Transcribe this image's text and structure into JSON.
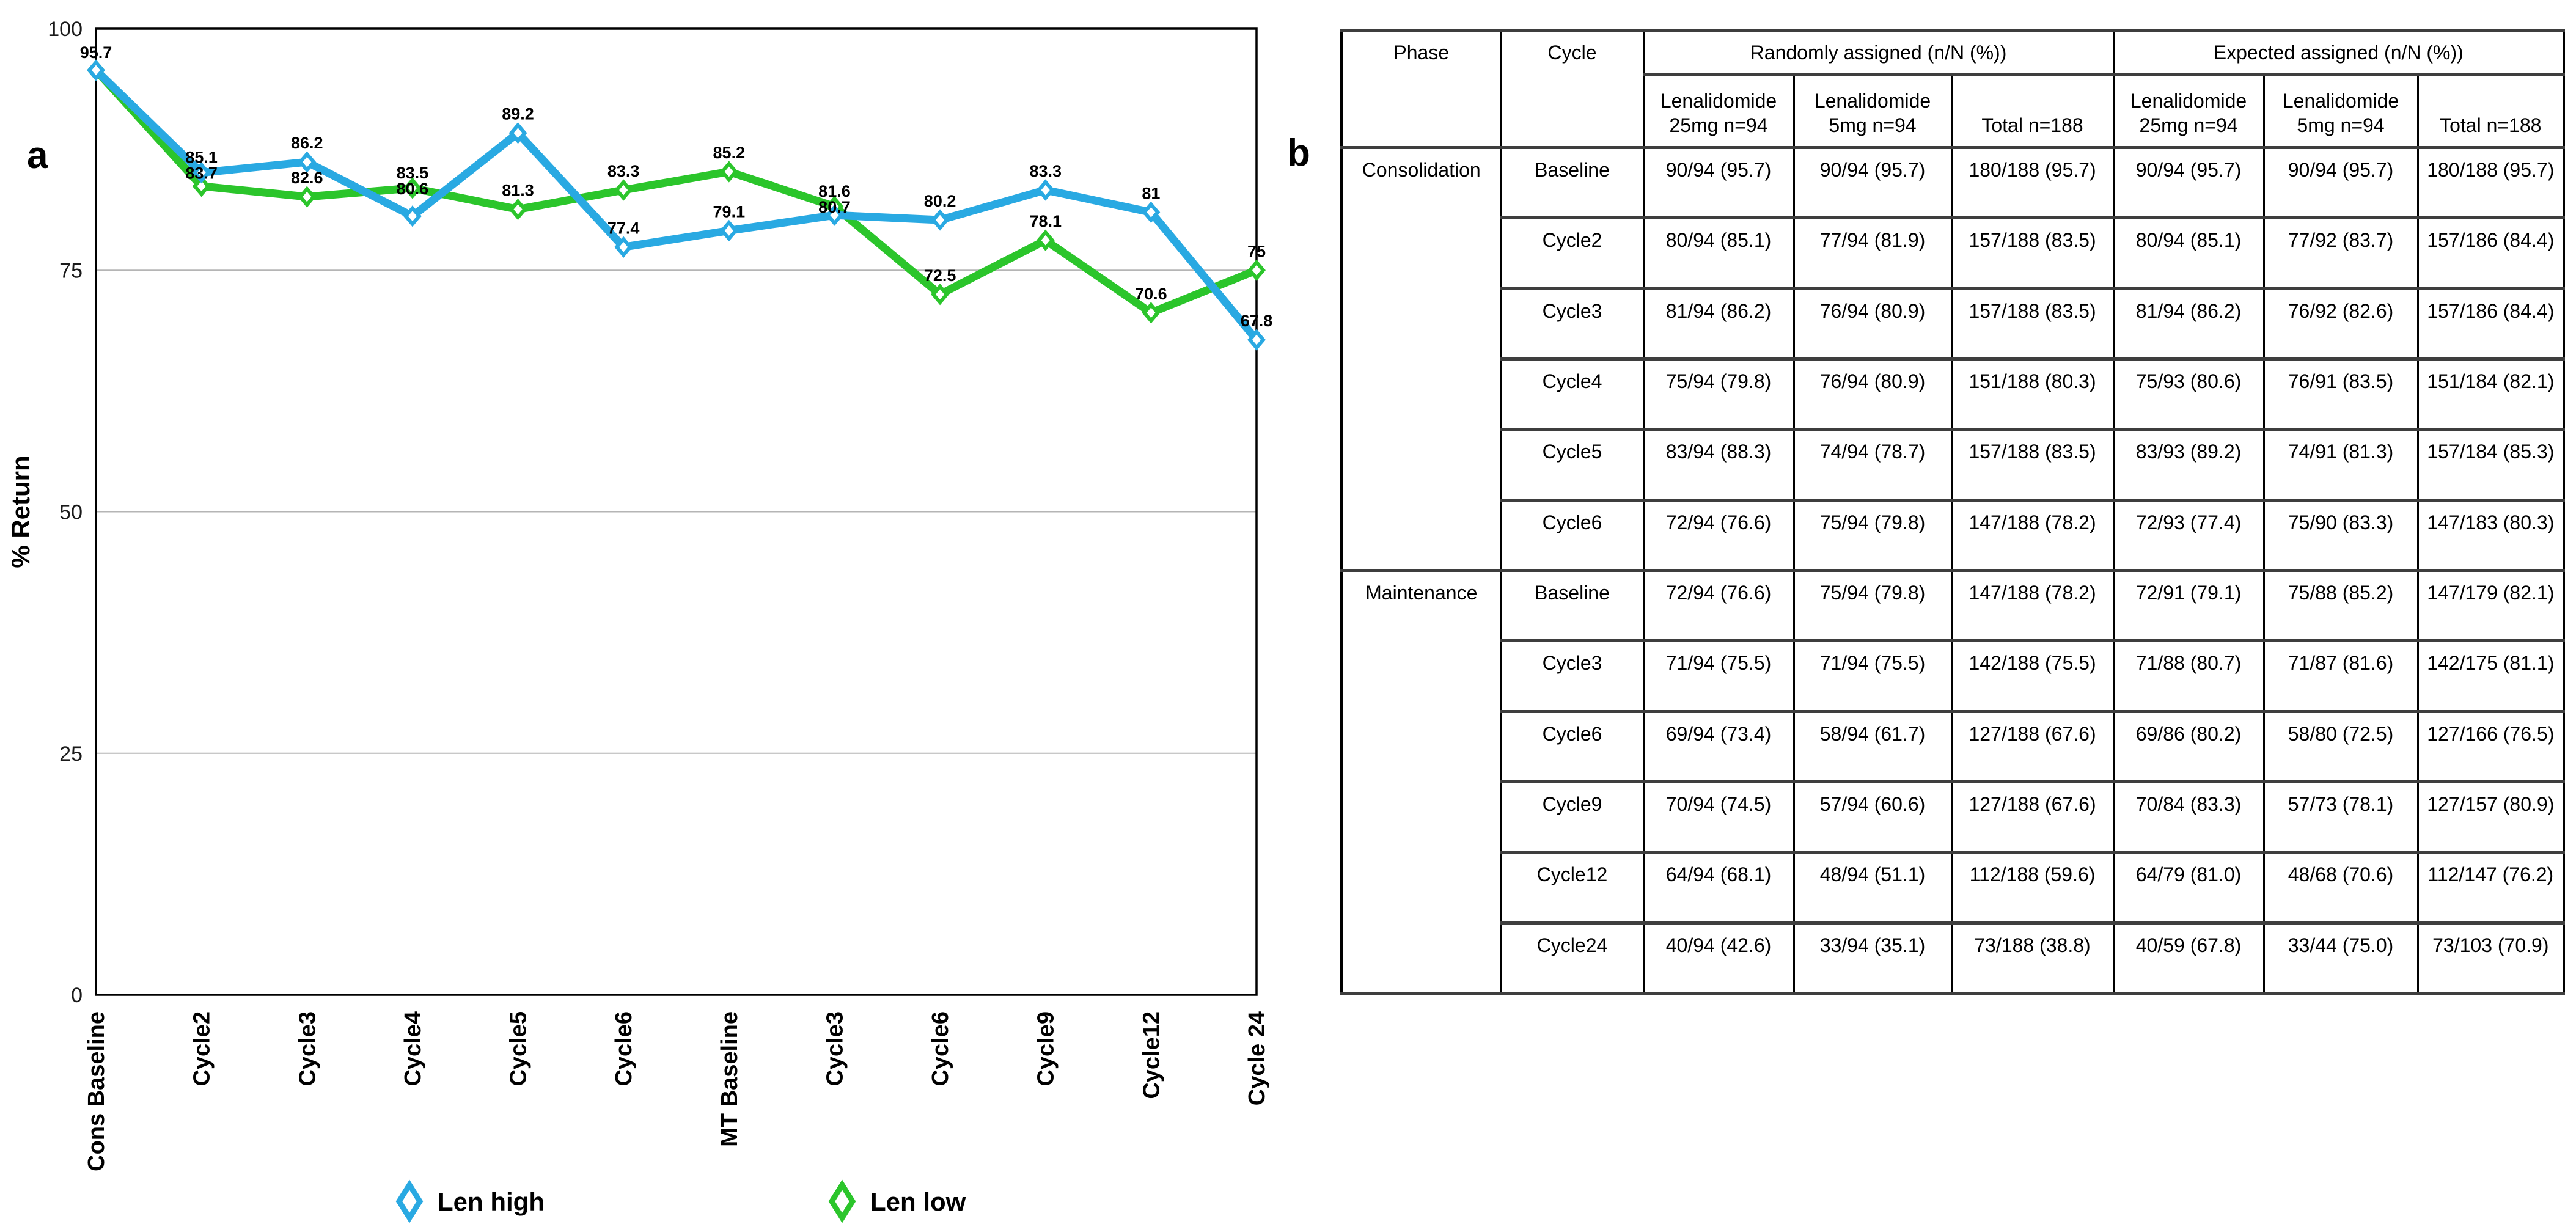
{
  "figure": {
    "panel_a": "a",
    "panel_b": "b"
  },
  "chart_data": {
    "type": "line",
    "title": "",
    "xlabel": "",
    "ylabel": "% Return",
    "ylim": [
      0,
      100
    ],
    "yticks": [
      0,
      25,
      50,
      75,
      100
    ],
    "gridlines": [
      25,
      50,
      75
    ],
    "grid": true,
    "legend_position": "bottom",
    "categories": [
      "Cons Baseline",
      "Cycle2",
      "Cycle3",
      "Cycle4",
      "Cycle5",
      "Cycle6",
      "MT Baseline",
      "Cycle3",
      "Cycle6",
      "Cycle9",
      "Cycle12",
      "Cycle 24"
    ],
    "series": [
      {
        "name": "Len high",
        "color": "#29A9E2",
        "values": [
          95.7,
          85.1,
          86.2,
          80.6,
          89.2,
          77.4,
          79.1,
          80.7,
          80.2,
          83.3,
          81,
          67.8
        ],
        "point_labels": [
          "95.7",
          "85.1",
          "86.2",
          "80.6",
          "89.2",
          "77.4",
          "79.1",
          "80.7",
          "80.2",
          "83.3",
          "81",
          "67.8"
        ]
      },
      {
        "name": "Len low",
        "color": "#2BC52B",
        "values": [
          95.7,
          83.7,
          82.6,
          83.5,
          81.3,
          83.3,
          85.2,
          81.6,
          72.5,
          78.1,
          70.6,
          75
        ],
        "point_labels": [
          "95.7",
          "83.7",
          "82.6",
          "83.5",
          "81.3",
          "83.3",
          "85.2",
          "81.6",
          "72.5",
          "78.1",
          "70.6",
          "75"
        ]
      }
    ]
  },
  "table": {
    "headers": {
      "phase": "Phase",
      "cycle": "Cycle",
      "randomly": "Randomly assigned (n/N (%))",
      "expected": "Expected assigned (n/N (%))"
    },
    "subheaders": [
      "Lenalidomide\n25mg n=94",
      "Lenalidomide\n5mg n=94",
      "Total n=188",
      "Lenalidomide\n25mg n=94",
      "Lenalidomide\n5mg n=94",
      "Total n=188"
    ],
    "rows": [
      {
        "phase": "Consolidation",
        "cycle": "Baseline",
        "values": [
          "90/94 (95.7)",
          "90/94 (95.7)",
          "180/188 (95.7)",
          "90/94 (95.7)",
          "90/94 (95.7)",
          "180/188 (95.7)"
        ]
      },
      {
        "phase": "",
        "cycle": "Cycle2",
        "values": [
          "80/94 (85.1)",
          "77/94 (81.9)",
          "157/188 (83.5)",
          "80/94 (85.1)",
          "77/92 (83.7)",
          "157/186 (84.4)"
        ]
      },
      {
        "phase": "",
        "cycle": "Cycle3",
        "values": [
          "81/94 (86.2)",
          "76/94 (80.9)",
          "157/188 (83.5)",
          "81/94 (86.2)",
          "76/92 (82.6)",
          "157/186 (84.4)"
        ]
      },
      {
        "phase": "",
        "cycle": "Cycle4",
        "values": [
          "75/94 (79.8)",
          "76/94 (80.9)",
          "151/188 (80.3)",
          "75/93 (80.6)",
          "76/91 (83.5)",
          "151/184 (82.1)"
        ]
      },
      {
        "phase": "",
        "cycle": "Cycle5",
        "values": [
          "83/94 (88.3)",
          "74/94 (78.7)",
          "157/188 (83.5)",
          "83/93 (89.2)",
          "74/91 (81.3)",
          "157/184 (85.3)"
        ]
      },
      {
        "phase": "",
        "cycle": "Cycle6",
        "values": [
          "72/94 (76.6)",
          "75/94 (79.8)",
          "147/188 (78.2)",
          "72/93 (77.4)",
          "75/90 (83.3)",
          "147/183 (80.3)"
        ]
      },
      {
        "phase": "Maintenance",
        "cycle": "Baseline",
        "values": [
          "72/94 (76.6)",
          "75/94 (79.8)",
          "147/188 (78.2)",
          "72/91 (79.1)",
          "75/88 (85.2)",
          "147/179 (82.1)"
        ]
      },
      {
        "phase": "",
        "cycle": "Cycle3",
        "values": [
          "71/94 (75.5)",
          "71/94 (75.5)",
          "142/188 (75.5)",
          "71/88 (80.7)",
          "71/87 (81.6)",
          "142/175 (81.1)"
        ]
      },
      {
        "phase": "",
        "cycle": "Cycle6",
        "values": [
          "69/94 (73.4)",
          "58/94 (61.7)",
          "127/188 (67.6)",
          "69/86 (80.2)",
          "58/80 (72.5)",
          "127/166 (76.5)"
        ]
      },
      {
        "phase": "",
        "cycle": "Cycle9",
        "values": [
          "70/94 (74.5)",
          "57/94 (60.6)",
          "127/188 (67.6)",
          "70/84 (83.3)",
          "57/73 (78.1)",
          "127/157 (80.9)"
        ]
      },
      {
        "phase": "",
        "cycle": "Cycle12",
        "values": [
          "64/94 (68.1)",
          "48/94 (51.1)",
          "112/188 (59.6)",
          "64/79 (81.0)",
          "48/68 (70.6)",
          "112/147 (76.2)"
        ]
      },
      {
        "phase": "",
        "cycle": "Cycle24",
        "values": [
          "40/94 (42.6)",
          "33/94 (35.1)",
          "73/188 (38.8)",
          "40/59 (67.8)",
          "33/44 (75.0)",
          "73/103 (70.9)"
        ]
      }
    ]
  }
}
